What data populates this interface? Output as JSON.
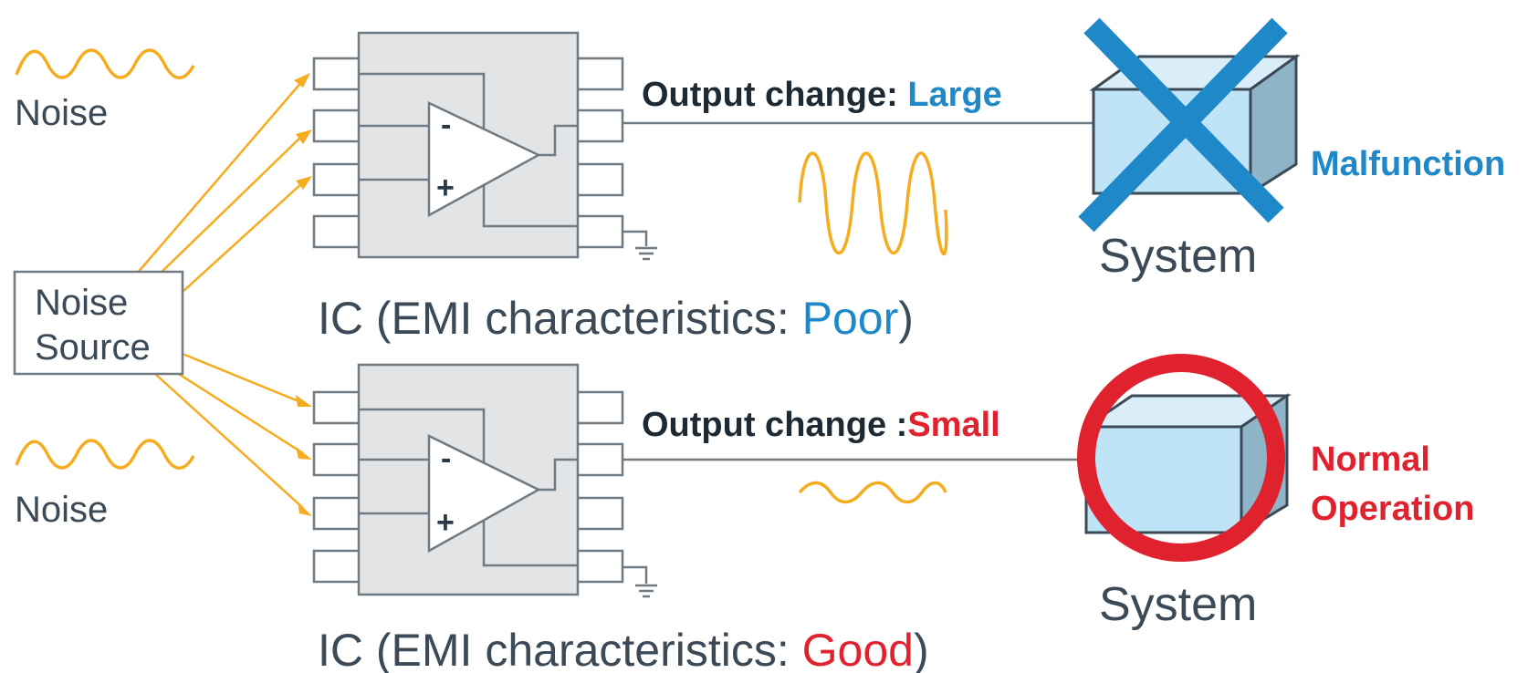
{
  "noise_label_top": "Noise",
  "noise_label_bottom": "Noise",
  "noise_source": {
    "line1": "Noise",
    "line2": "Source"
  },
  "top": {
    "output_prefix": "Output change: ",
    "output_value": "Large",
    "ic_prefix": "IC (EMI characteristics: ",
    "ic_value": "Poor",
    "ic_suffix": ")",
    "system": "System",
    "status": "Malfunction",
    "status_color": "#1e88c8",
    "value_color": "#1e88c8"
  },
  "bottom": {
    "output_prefix": "Output change :",
    "output_value": "Small",
    "ic_prefix": "IC (EMI characteristics: ",
    "ic_value": "Good",
    "ic_suffix": ")",
    "system": "System",
    "status_line1": "Normal",
    "status_line2": "Operation",
    "status_color": "#e0212e",
    "value_color": "#e0212e"
  },
  "amp_signs": {
    "minus": "-",
    "plus": "+"
  },
  "colors": {
    "noise": "#f5ac1e",
    "box_fill": "#bfe4f7",
    "box_top": "#d9eef9",
    "box_side": "#8eb4c8",
    "cross": "#1e88c8",
    "circle": "#e0212e"
  }
}
